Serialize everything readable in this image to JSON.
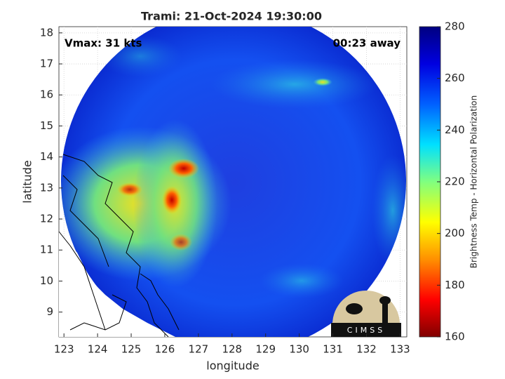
{
  "map": {
    "title": "Trami: 21-Oct-2024 19:30:00",
    "xlabel": "longitude",
    "ylabel": "latitude",
    "xlim": [
      122.85,
      133.2
    ],
    "ylim": [
      8.2,
      18.2
    ],
    "xticks": [
      123,
      124,
      125,
      126,
      127,
      128,
      129,
      130,
      131,
      132,
      133
    ],
    "yticks": [
      9,
      10,
      11,
      12,
      13,
      14,
      15,
      16,
      17,
      18
    ],
    "annotations": [
      "Vmax: 31 kts",
      "00:23 away"
    ],
    "grid": true,
    "colorbar": {
      "label": "Brightness Temp - Horizontal Polarization",
      "lim": [
        160,
        280
      ],
      "ticks": [
        160,
        180,
        200,
        220,
        240,
        260,
        280
      ]
    },
    "logo": "CIMSS"
  }
}
